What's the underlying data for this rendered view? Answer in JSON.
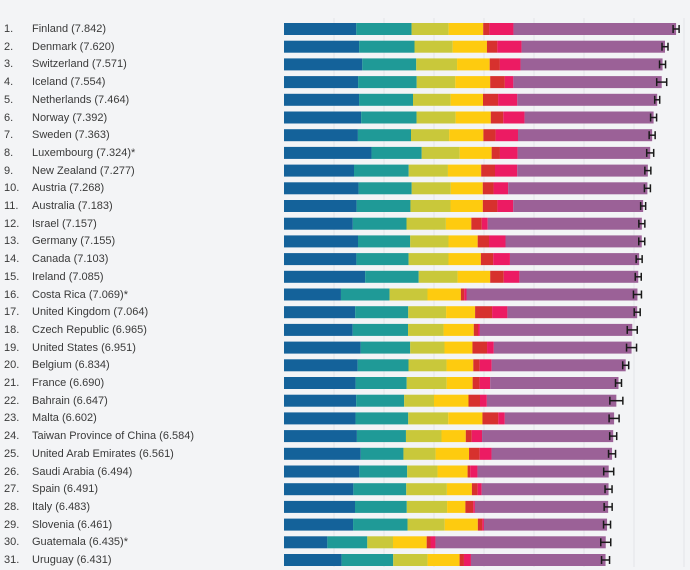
{
  "chart_data": {
    "type": "bar",
    "orientation": "horizontal-stacked",
    "grid": "vertical",
    "segment_colors": [
      "#14629a",
      "#1f9a97",
      "#c9c83a",
      "#fecb0f",
      "#d7312e",
      "#ec1b63",
      "#9b6197"
    ],
    "countries": [
      {
        "rank": "1.",
        "label": "Finland (7.842)",
        "score": 7.842,
        "parts": [
          1.446,
          1.106,
          0.741,
          0.691,
          0.124,
          0.481
        ],
        "ci": 0.06
      },
      {
        "rank": "2.",
        "label": "Denmark (7.620)",
        "score": 7.62,
        "parts": [
          1.502,
          1.108,
          0.763,
          0.686,
          0.208,
          0.485
        ],
        "ci": 0.06
      },
      {
        "rank": "3.",
        "label": "Switzerland (7.571)",
        "score": 7.571,
        "parts": [
          1.566,
          1.079,
          0.816,
          0.653,
          0.204,
          0.413
        ],
        "ci": 0.06
      },
      {
        "rank": "4.",
        "label": "Iceland (7.554)",
        "score": 7.554,
        "parts": [
          1.482,
          1.172,
          0.772,
          0.698,
          0.293,
          0.17
        ],
        "ci": 0.1
      },
      {
        "rank": "5.",
        "label": "Netherlands (7.464)",
        "score": 7.464,
        "parts": [
          1.501,
          1.079,
          0.753,
          0.647,
          0.302,
          0.384
        ],
        "ci": 0.05
      },
      {
        "rank": "6.",
        "label": "Norway (7.392)",
        "score": 7.392,
        "parts": [
          1.543,
          1.108,
          0.782,
          0.703,
          0.249,
          0.427
        ],
        "ci": 0.06
      },
      {
        "rank": "7.",
        "label": "Sweden (7.363)",
        "score": 7.363,
        "parts": [
          1.478,
          1.062,
          0.763,
          0.685,
          0.244,
          0.448
        ],
        "ci": 0.06
      },
      {
        "rank": "8.",
        "label": "Luxembourg (7.324)*",
        "score": 7.324,
        "parts": [
          1.751,
          1.003,
          0.76,
          0.639,
          0.166,
          0.353
        ],
        "ci": 0.07
      },
      {
        "rank": "9.",
        "label": "New Zealand (7.277)",
        "score": 7.277,
        "parts": [
          1.4,
          1.094,
          0.785,
          0.665,
          0.276,
          0.445
        ],
        "ci": 0.06
      },
      {
        "rank": "10.",
        "label": "Austria (7.268)",
        "score": 7.268,
        "parts": [
          1.492,
          1.062,
          0.782,
          0.64,
          0.215,
          0.292
        ],
        "ci": 0.06
      },
      {
        "rank": "11.",
        "label": "Australia (7.183)",
        "score": 7.183,
        "parts": [
          1.453,
          1.076,
          0.801,
          0.647,
          0.291,
          0.317
        ],
        "ci": 0.05
      },
      {
        "rank": "12.",
        "label": "Israel (7.157)",
        "score": 7.157,
        "parts": [
          1.376,
          1.074,
          0.788,
          0.509,
          0.208,
          0.119
        ],
        "ci": 0.06
      },
      {
        "rank": "13.",
        "label": "Germany (7.155)",
        "score": 7.155,
        "parts": [
          1.48,
          1.044,
          0.766,
          0.584,
          0.226,
          0.33
        ],
        "ci": 0.06
      },
      {
        "rank": "14.",
        "label": "Canada (7.103)",
        "score": 7.103,
        "parts": [
          1.448,
          1.044,
          0.798,
          0.648,
          0.246,
          0.335
        ],
        "ci": 0.06
      },
      {
        "rank": "15.",
        "label": "Ireland (7.085)",
        "score": 7.085,
        "parts": [
          1.623,
          1.071,
          0.778,
          0.652,
          0.271,
          0.313
        ],
        "ci": 0.06
      },
      {
        "rank": "16.",
        "label": "Costa Rica (7.069)*",
        "score": 7.069,
        "parts": [
          1.139,
          0.973,
          0.758,
          0.668,
          0.068,
          0.044
        ],
        "ci": 0.08
      },
      {
        "rank": "17.",
        "label": "United Kingdom (7.064)",
        "score": 7.064,
        "parts": [
          1.423,
          1.062,
          0.757,
          0.58,
          0.34,
          0.306
        ],
        "ci": 0.06
      },
      {
        "rank": "18.",
        "label": "Czech Republic (6.965)",
        "score": 6.965,
        "parts": [
          1.374,
          1.107,
          0.71,
          0.605,
          0.084,
          0.038
        ],
        "ci": 0.1
      },
      {
        "rank": "19.",
        "label": "United States (6.951)",
        "score": 6.951,
        "parts": [
          1.533,
          0.991,
          0.686,
          0.559,
          0.292,
          0.135
        ],
        "ci": 0.1
      },
      {
        "rank": "20.",
        "label": "Belgium (6.834)",
        "score": 6.834,
        "parts": [
          1.474,
          1.016,
          0.761,
          0.535,
          0.128,
          0.24
        ],
        "ci": 0.06
      },
      {
        "rank": "21.",
        "label": "France (6.690)",
        "score": 6.69,
        "parts": [
          1.432,
          1.022,
          0.799,
          0.52,
          0.14,
          0.211
        ],
        "ci": 0.06
      },
      {
        "rank": "22.",
        "label": "Bahrain (6.647)",
        "score": 6.647,
        "parts": [
          1.443,
          0.96,
          0.597,
          0.69,
          0.23,
          0.137
        ],
        "ci": 0.13
      },
      {
        "rank": "23.",
        "label": "Malta (6.602)",
        "score": 6.602,
        "parts": [
          1.431,
          1.054,
          0.8,
          0.684,
          0.317,
          0.13
        ],
        "ci": 0.1
      },
      {
        "rank": "24.",
        "label": "Taiwan Province of China (6.584)",
        "score": 6.584,
        "parts": [
          1.458,
          0.981,
          0.711,
          0.486,
          0.118,
          0.207
        ],
        "ci": 0.07
      },
      {
        "rank": "25.",
        "label": "United Arab Emirates (6.561)",
        "score": 6.561,
        "parts": [
          1.535,
          0.854,
          0.643,
          0.669,
          0.213,
          0.237
        ],
        "ci": 0.07
      },
      {
        "rank": "26.",
        "label": "Saudi Arabia (6.494)",
        "score": 6.494,
        "parts": [
          1.507,
          0.957,
          0.607,
          0.601,
          0.052,
          0.145
        ],
        "ci": 0.1
      },
      {
        "rank": "27.",
        "label": "Spain (6.491)",
        "score": 6.491,
        "parts": [
          1.387,
          1.058,
          0.813,
          0.5,
          0.116,
          0.079
        ],
        "ci": 0.07
      },
      {
        "rank": "28.",
        "label": "Italy (6.483)",
        "score": 6.483,
        "parts": [
          1.42,
          1.036,
          0.806,
          0.366,
          0.157,
          0.033
        ],
        "ci": 0.08
      },
      {
        "rank": "29.",
        "label": "Slovenia (6.461)",
        "score": 6.461,
        "parts": [
          1.381,
          1.09,
          0.743,
          0.663,
          0.09,
          0.032
        ],
        "ci": 0.07
      },
      {
        "rank": "30.",
        "label": "Guatemala (6.435)*",
        "score": 6.435,
        "parts": [
          0.867,
          0.799,
          0.514,
          0.674,
          0.076,
          0.099
        ],
        "ci": 0.1
      },
      {
        "rank": "31.",
        "label": "Uruguay (6.431)",
        "score": 6.431,
        "parts": [
          1.153,
          1.031,
          0.688,
          0.64,
          0.087,
          0.14
        ],
        "ci": 0.08
      }
    ]
  }
}
